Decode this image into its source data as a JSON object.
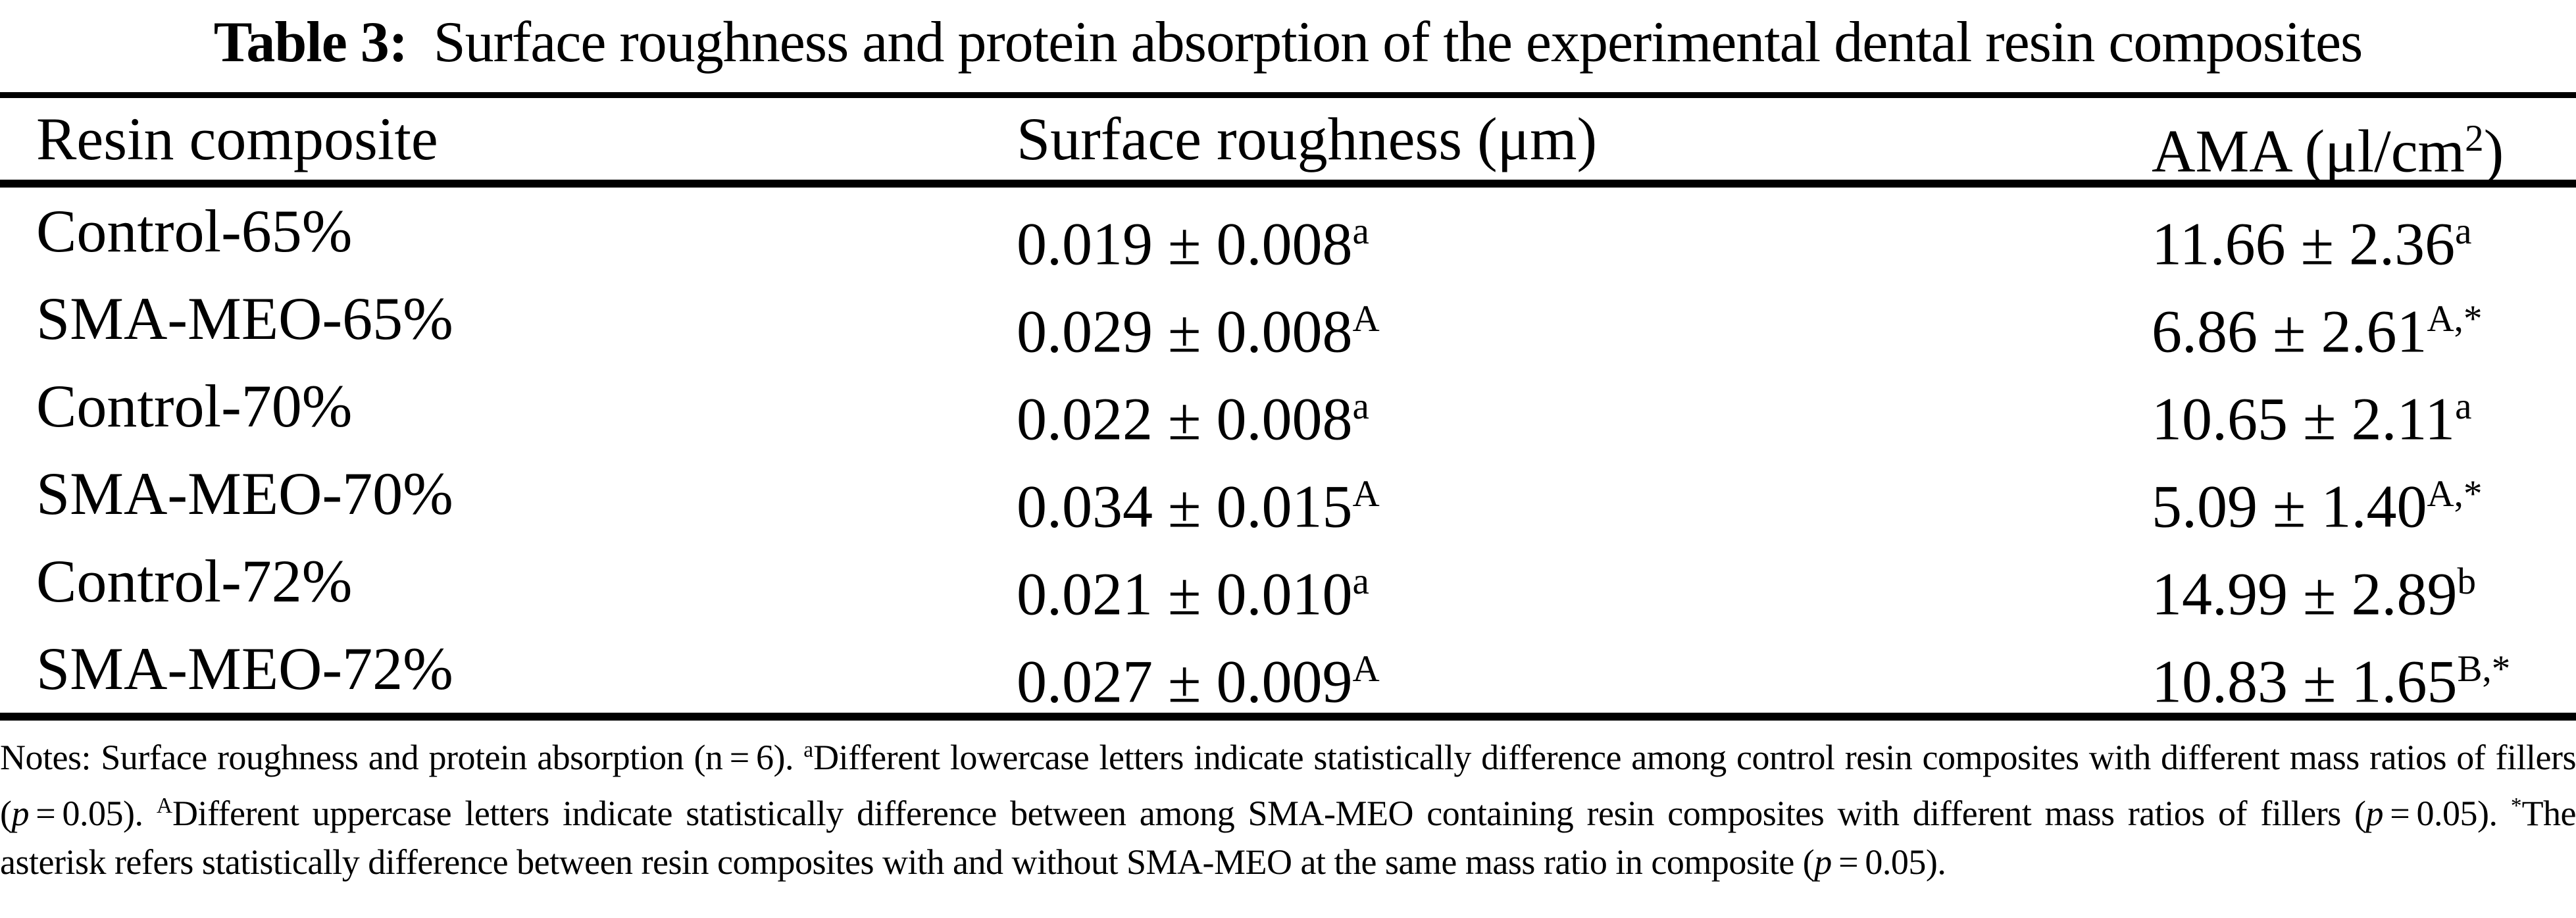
{
  "title": {
    "label": "Table 3:",
    "text": "Surface roughness and protein absorption of the experimental dental resin composites"
  },
  "table": {
    "headers": {
      "composite": "Resin composite",
      "roughness": "Surface roughness (μm)",
      "ama_prefix": "AMA (μl/cm",
      "ama_sup": "2",
      "ama_suffix": ")"
    },
    "rows": [
      {
        "composite": "Control-65%",
        "roughness": "0.019 ± 0.008",
        "roughness_sup": "a",
        "ama": "11.66 ± 2.36",
        "ama_sup": "a"
      },
      {
        "composite": "SMA-MEO-65%",
        "roughness": "0.029 ± 0.008",
        "roughness_sup": "A",
        "ama": "6.86 ± 2.61",
        "ama_sup": "A,*"
      },
      {
        "composite": "Control-70%",
        "roughness": "0.022 ± 0.008",
        "roughness_sup": "a",
        "ama": "10.65 ± 2.11",
        "ama_sup": "a"
      },
      {
        "composite": "SMA-MEO-70%",
        "roughness": "0.034 ± 0.015",
        "roughness_sup": "A",
        "ama": "5.09 ± 1.40",
        "ama_sup": "A,*"
      },
      {
        "composite": "Control-72%",
        "roughness": "0.021 ± 0.010",
        "roughness_sup": "a",
        "ama": "14.99 ± 2.89",
        "ama_sup": "b"
      },
      {
        "composite": "SMA-MEO-72%",
        "roughness": "0.027 ± 0.009",
        "roughness_sup": "A",
        "ama": "10.83 ± 1.65",
        "ama_sup": "B,*"
      }
    ]
  },
  "notes": {
    "segments": [
      {
        "t": "Notes: Surface roughness and protein absorption (n = 6). "
      },
      {
        "t": "a",
        "sup": true
      },
      {
        "t": "Different lowercase letters indicate statistically difference among control resin composites with different mass ratios of fillers ("
      },
      {
        "t": "p",
        "italic": true
      },
      {
        "t": " = 0.05). "
      },
      {
        "t": "A",
        "sup": true
      },
      {
        "t": "Different uppercase letters indicate statistically difference between among SMA-MEO containing resin composites with different mass ratios of fillers ("
      },
      {
        "t": "p",
        "italic": true
      },
      {
        "t": " = 0.05). "
      },
      {
        "t": "*",
        "sup": true
      },
      {
        "t": "The asterisk refers statistically difference between resin composites with and without SMA-MEO at the same mass ratio in composite ("
      },
      {
        "t": "p",
        "italic": true
      },
      {
        "t": " = 0.05)."
      }
    ]
  }
}
